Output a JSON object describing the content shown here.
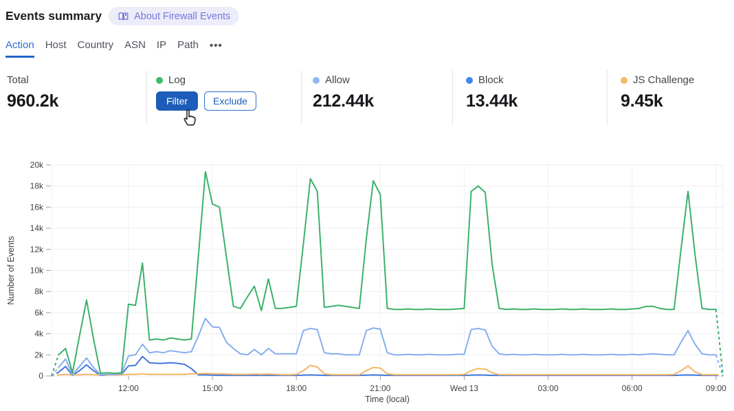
{
  "header": {
    "title": "Events summary",
    "about_badge": {
      "label": "About Firewall Events",
      "icon": "open-book-icon"
    }
  },
  "tabs": {
    "active": "Action",
    "items": [
      {
        "label": "Action"
      },
      {
        "label": "Host"
      },
      {
        "label": "Country"
      },
      {
        "label": "ASN"
      },
      {
        "label": "IP"
      },
      {
        "label": "Path"
      }
    ],
    "more_label": "•••"
  },
  "stats": [
    {
      "label": "Total",
      "value": "960.2k"
    },
    {
      "label": "Log",
      "dot_color": "#3fba6e",
      "buttons": [
        {
          "label": "Filter"
        },
        {
          "label": "Exclude"
        }
      ]
    },
    {
      "label": "Allow",
      "value": "212.44k",
      "dot_color": "#8fb7f5"
    },
    {
      "label": "Block",
      "value": "13.44k",
      "dot_color": "#4286f0"
    },
    {
      "label": "JS Challenge",
      "value": "9.45k",
      "dot_color": "#f3ba69"
    }
  ],
  "accent_color": "#1d5cb8",
  "chart_data": {
    "type": "line",
    "xlabel": "Time (local)",
    "ylabel": "Number of Events",
    "ylim": [
      0,
      20000
    ],
    "grid": true,
    "legend_position": "stats-row-above",
    "time_start": "09:15",
    "time_step_minutes": 15,
    "partial_bucket_ends_dashed": true,
    "y_ticks": [
      {
        "v": 0,
        "label": "0"
      },
      {
        "v": 2000,
        "label": "2k"
      },
      {
        "v": 4000,
        "label": "4k"
      },
      {
        "v": 6000,
        "label": "6k"
      },
      {
        "v": 8000,
        "label": "8k"
      },
      {
        "v": 10000,
        "label": "10k"
      },
      {
        "v": 12000,
        "label": "12k"
      },
      {
        "v": 14000,
        "label": "14k"
      },
      {
        "v": 16000,
        "label": "16k"
      },
      {
        "v": 18000,
        "label": "18k"
      },
      {
        "v": 20000,
        "label": "20k"
      }
    ],
    "x_ticks": [
      {
        "index": 11,
        "label": "12:00"
      },
      {
        "index": 23,
        "label": "15:00"
      },
      {
        "index": 35,
        "label": "18:00"
      },
      {
        "index": 47,
        "label": "21:00"
      },
      {
        "index": 59,
        "label": "Wed 13"
      },
      {
        "index": 71,
        "label": "03:00"
      },
      {
        "index": 83,
        "label": "06:00"
      },
      {
        "index": 95,
        "label": "09:00"
      }
    ],
    "draw_order": [
      2,
      3,
      1,
      0
    ],
    "series": [
      {
        "name": "Log",
        "color": "#3ab169",
        "values": [
          0,
          2000,
          2600,
          300,
          3800,
          7200,
          3500,
          250,
          300,
          250,
          300,
          6800,
          6700,
          10700,
          3400,
          3500,
          3400,
          3600,
          3500,
          3400,
          3500,
          11400,
          19350,
          16300,
          16000,
          11300,
          6600,
          6400,
          7500,
          8500,
          6200,
          9200,
          6400,
          6400,
          6500,
          6600,
          12500,
          18700,
          17500,
          6500,
          6600,
          6700,
          6600,
          6500,
          6400,
          13000,
          18500,
          17200,
          6400,
          6300,
          6300,
          6350,
          6300,
          6300,
          6350,
          6300,
          6300,
          6300,
          6350,
          6400,
          17500,
          18000,
          17400,
          10500,
          6400,
          6300,
          6350,
          6300,
          6300,
          6350,
          6300,
          6300,
          6300,
          6350,
          6300,
          6300,
          6350,
          6300,
          6300,
          6300,
          6350,
          6300,
          6300,
          6350,
          6400,
          6600,
          6600,
          6400,
          6300,
          6300,
          12000,
          17500,
          11500,
          6400,
          6300,
          6300,
          0
        ]
      },
      {
        "name": "Allow",
        "color": "#86aef0",
        "values": [
          0,
          800,
          1600,
          100,
          900,
          1700,
          800,
          100,
          150,
          150,
          200,
          1900,
          2000,
          3000,
          2200,
          2300,
          2200,
          2400,
          2300,
          2200,
          2300,
          3800,
          5450,
          4650,
          4600,
          3200,
          2600,
          2100,
          2000,
          2500,
          2000,
          2600,
          2100,
          2100,
          2100,
          2100,
          4300,
          4500,
          4400,
          2200,
          2100,
          2100,
          2000,
          2000,
          2000,
          4300,
          4550,
          4450,
          2200,
          2000,
          2000,
          2050,
          2000,
          2000,
          2050,
          2000,
          2000,
          2000,
          2050,
          2050,
          4400,
          4500,
          4350,
          2800,
          2100,
          2000,
          2050,
          2000,
          2000,
          2050,
          2000,
          2000,
          2000,
          2050,
          2000,
          2000,
          2050,
          2000,
          2000,
          2000,
          2050,
          2000,
          2000,
          2050,
          2000,
          2050,
          2100,
          2050,
          2000,
          2000,
          3200,
          4300,
          3000,
          2100,
          2000,
          2000,
          0
        ]
      },
      {
        "name": "Block",
        "color": "#4377dd",
        "values": [
          0,
          350,
          900,
          50,
          500,
          1050,
          500,
          50,
          100,
          100,
          150,
          950,
          1000,
          1850,
          1250,
          1200,
          1200,
          1250,
          1200,
          1100,
          700,
          100,
          100,
          80,
          60,
          60,
          60,
          60,
          60,
          60,
          60,
          60,
          60,
          60,
          60,
          60,
          80,
          100,
          80,
          60,
          60,
          60,
          60,
          60,
          60,
          80,
          100,
          80,
          60,
          60,
          60,
          60,
          60,
          60,
          60,
          60,
          60,
          60,
          60,
          60,
          80,
          100,
          80,
          60,
          60,
          60,
          60,
          60,
          60,
          60,
          60,
          60,
          60,
          60,
          60,
          60,
          60,
          60,
          60,
          60,
          60,
          60,
          60,
          60,
          60,
          60,
          60,
          60,
          60,
          60,
          80,
          100,
          80,
          60,
          60,
          60,
          0
        ]
      },
      {
        "name": "JS Challenge",
        "color": "#f1b564",
        "values": [
          0,
          100,
          150,
          100,
          120,
          150,
          120,
          100,
          100,
          100,
          100,
          150,
          150,
          200,
          150,
          150,
          150,
          150,
          150,
          150,
          200,
          200,
          250,
          200,
          200,
          180,
          150,
          150,
          150,
          180,
          150,
          180,
          150,
          120,
          120,
          150,
          500,
          1000,
          850,
          200,
          120,
          120,
          120,
          120,
          120,
          500,
          800,
          750,
          200,
          120,
          120,
          120,
          120,
          120,
          120,
          120,
          120,
          120,
          120,
          150,
          500,
          700,
          650,
          300,
          120,
          120,
          120,
          120,
          120,
          120,
          120,
          120,
          120,
          120,
          120,
          120,
          120,
          120,
          120,
          120,
          120,
          120,
          120,
          120,
          120,
          120,
          120,
          120,
          120,
          150,
          500,
          950,
          400,
          120,
          120,
          120,
          0
        ]
      }
    ]
  }
}
